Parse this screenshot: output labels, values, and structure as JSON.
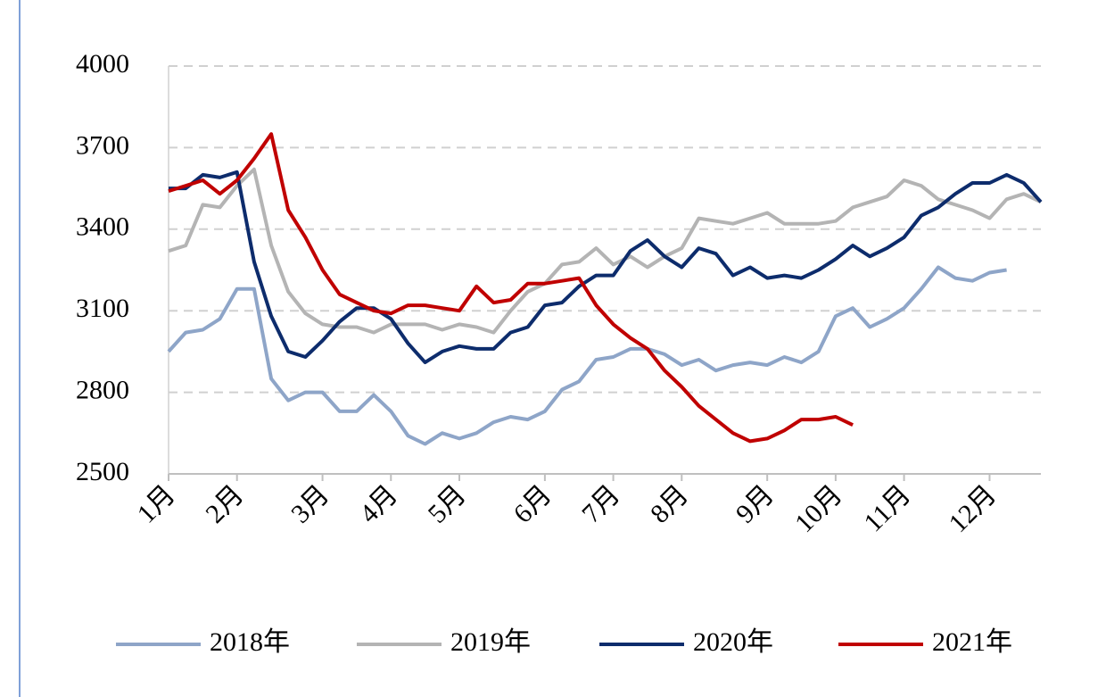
{
  "chart_data": {
    "type": "line",
    "categories": [
      "1月",
      null,
      null,
      null,
      "2月",
      null,
      null,
      null,
      null,
      "3月",
      null,
      null,
      null,
      "4月",
      null,
      null,
      null,
      "5月",
      null,
      null,
      null,
      null,
      "6月",
      null,
      null,
      null,
      "7月",
      null,
      null,
      null,
      "8月",
      null,
      null,
      null,
      null,
      "9月",
      null,
      null,
      null,
      "10月",
      null,
      null,
      null,
      "11月",
      null,
      null,
      null,
      null,
      "12月",
      null,
      null,
      null
    ],
    "series": [
      {
        "name": "2018年",
        "color": "#8EA5C8",
        "values": [
          2950,
          3020,
          3030,
          3070,
          3180,
          3180,
          2850,
          2770,
          2800,
          2800,
          2730,
          2730,
          2790,
          2730,
          2640,
          2610,
          2650,
          2630,
          2650,
          2690,
          2710,
          2700,
          2730,
          2810,
          2840,
          2920,
          2930,
          2960,
          2960,
          2940,
          2900,
          2920,
          2880,
          2900,
          2910,
          2900,
          2930,
          2910,
          2950,
          3080,
          3110,
          3040,
          3070,
          3110,
          3180,
          3260,
          3220,
          3210,
          3240,
          3250,
          null,
          null
        ]
      },
      {
        "name": "2019年",
        "color": "#B4B4B4",
        "values": [
          3320,
          3340,
          3490,
          3480,
          3560,
          3620,
          3340,
          3170,
          3090,
          3050,
          3040,
          3040,
          3020,
          3050,
          3050,
          3050,
          3030,
          3050,
          3040,
          3020,
          3100,
          3170,
          3200,
          3270,
          3280,
          3330,
          3270,
          3300,
          3260,
          3300,
          3330,
          3440,
          3430,
          3420,
          3440,
          3460,
          3420,
          3420,
          3420,
          3430,
          3480,
          3500,
          3520,
          3580,
          3560,
          3510,
          3490,
          3470,
          3440,
          3510,
          3530,
          3500
        ]
      },
      {
        "name": "2020年",
        "color": "#0D2C6C",
        "values": [
          3550,
          3550,
          3600,
          3590,
          3610,
          3280,
          3080,
          2950,
          2930,
          2990,
          3060,
          3110,
          3110,
          3070,
          2980,
          2910,
          2950,
          2970,
          2960,
          2960,
          3020,
          3040,
          3120,
          3130,
          3190,
          3230,
          3230,
          3320,
          3360,
          3300,
          3260,
          3330,
          3310,
          3230,
          3260,
          3220,
          3230,
          3220,
          3250,
          3290,
          3340,
          3300,
          3330,
          3370,
          3450,
          3480,
          3530,
          3570,
          3570,
          3600,
          3570,
          3500
        ]
      },
      {
        "name": "2021年",
        "color": "#C00000",
        "values": [
          3540,
          3560,
          3580,
          3530,
          3580,
          3660,
          3750,
          3470,
          3370,
          3250,
          3160,
          3130,
          3100,
          3090,
          3120,
          3120,
          3110,
          3100,
          3190,
          3130,
          3140,
          3200,
          3200,
          3210,
          3220,
          3120,
          3050,
          3000,
          2960,
          2880,
          2820,
          2750,
          2700,
          2650,
          2620,
          2630,
          2660,
          2700,
          2700,
          2710,
          2680,
          null,
          null,
          null,
          null,
          null,
          null,
          null,
          null,
          null,
          null,
          null
        ]
      }
    ],
    "ylim": [
      2500,
      4000
    ],
    "yticks": [
      2500,
      2800,
      3100,
      3400,
      3700,
      4000
    ],
    "grid": true,
    "legend": "bottom"
  }
}
